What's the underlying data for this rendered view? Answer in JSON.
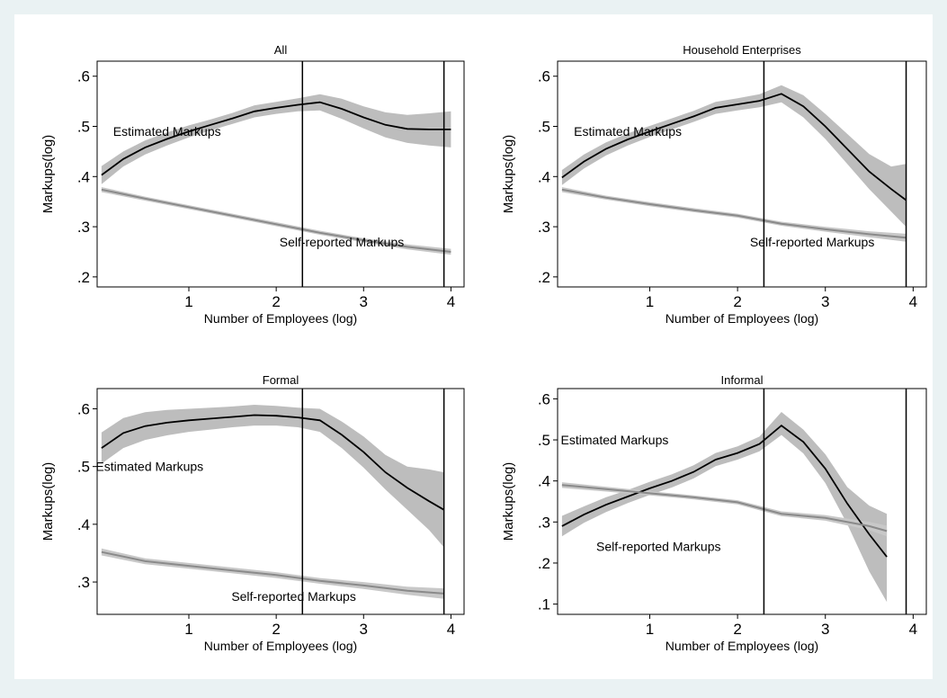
{
  "colors": {
    "page_background": "#eaf2f3",
    "plot_background": "#ffffff",
    "estimated_line": "#000000",
    "estimated_band": "#bdbdbd",
    "self_reported_line": "#8a8a8a",
    "self_reported_band": "#c8c8c8",
    "reference_lines": "#000000"
  },
  "chart_data": [
    {
      "type": "line",
      "title": "All",
      "xlabel": "Number of Employees (log)",
      "ylabel": "Markups(log)",
      "xlim": [
        -0.05,
        4.15
      ],
      "ylim": [
        0.18,
        0.63
      ],
      "xticks": [
        1,
        2,
        3,
        4
      ],
      "xtick_labels": [
        "1",
        "2",
        "3",
        "4"
      ],
      "yticks": [
        0.2,
        0.3,
        0.4,
        0.5,
        0.6
      ],
      "ytick_labels": [
        ".2",
        ".3",
        ".4",
        ".5",
        ".6"
      ],
      "vlines": [
        2.3,
        3.92
      ],
      "grid": false,
      "legend": "none",
      "annotations": [
        {
          "text": "Estimated Markups",
          "x": 0.75,
          "y": 0.49
        },
        {
          "text": "Self-reported Markups",
          "x": 2.75,
          "y": 0.27
        }
      ],
      "series": [
        {
          "name": "Estimated Markups",
          "x": [
            0.0,
            0.25,
            0.5,
            0.75,
            1.0,
            1.25,
            1.5,
            1.75,
            2.0,
            2.25,
            2.5,
            2.75,
            3.0,
            3.25,
            3.5,
            3.75,
            4.0
          ],
          "y": [
            0.403,
            0.435,
            0.458,
            0.475,
            0.49,
            0.503,
            0.516,
            0.53,
            0.537,
            0.543,
            0.548,
            0.535,
            0.518,
            0.503,
            0.495,
            0.494,
            0.494
          ],
          "lower": [
            0.385,
            0.42,
            0.444,
            0.462,
            0.478,
            0.492,
            0.505,
            0.518,
            0.525,
            0.53,
            0.532,
            0.515,
            0.496,
            0.478,
            0.467,
            0.462,
            0.458
          ],
          "upper": [
            0.421,
            0.45,
            0.472,
            0.488,
            0.502,
            0.514,
            0.527,
            0.542,
            0.549,
            0.556,
            0.564,
            0.555,
            0.54,
            0.528,
            0.523,
            0.526,
            0.53
          ]
        },
        {
          "name": "Self-reported Markups",
          "x": [
            0.0,
            0.5,
            1.0,
            1.5,
            2.0,
            2.5,
            3.0,
            3.5,
            4.0
          ],
          "y": [
            0.374,
            0.356,
            0.339,
            0.322,
            0.305,
            0.288,
            0.273,
            0.26,
            0.25
          ],
          "lower": [
            0.369,
            0.352,
            0.335,
            0.318,
            0.301,
            0.284,
            0.269,
            0.255,
            0.244
          ],
          "upper": [
            0.379,
            0.36,
            0.343,
            0.326,
            0.309,
            0.292,
            0.277,
            0.265,
            0.256
          ]
        }
      ]
    },
    {
      "type": "line",
      "title": "Household Enterprises",
      "xlabel": "Number of Employees (log)",
      "ylabel": "Markups(log)",
      "xlim": [
        -0.05,
        4.15
      ],
      "ylim": [
        0.18,
        0.63
      ],
      "xticks": [
        1,
        2,
        3,
        4
      ],
      "xtick_labels": [
        "1",
        "2",
        "3",
        "4"
      ],
      "yticks": [
        0.2,
        0.3,
        0.4,
        0.5,
        0.6
      ],
      "ytick_labels": [
        ".2",
        ".3",
        ".4",
        ".5",
        ".6"
      ],
      "vlines": [
        2.3,
        3.92
      ],
      "grid": false,
      "legend": "none",
      "annotations": [
        {
          "text": "Estimated Markups",
          "x": 0.75,
          "y": 0.49
        },
        {
          "text": "Self-reported Markups",
          "x": 2.85,
          "y": 0.27
        }
      ],
      "series": [
        {
          "name": "Estimated Markups",
          "x": [
            0.0,
            0.25,
            0.5,
            0.75,
            1.0,
            1.25,
            1.5,
            1.75,
            2.0,
            2.25,
            2.5,
            2.75,
            3.0,
            3.25,
            3.5,
            3.75,
            3.92
          ],
          "y": [
            0.398,
            0.43,
            0.455,
            0.474,
            0.49,
            0.505,
            0.52,
            0.537,
            0.544,
            0.551,
            0.565,
            0.54,
            0.5,
            0.455,
            0.41,
            0.375,
            0.353
          ],
          "lower": [
            0.383,
            0.416,
            0.442,
            0.462,
            0.479,
            0.494,
            0.509,
            0.525,
            0.532,
            0.538,
            0.548,
            0.518,
            0.475,
            0.425,
            0.375,
            0.33,
            0.3
          ],
          "upper": [
            0.413,
            0.444,
            0.468,
            0.486,
            0.501,
            0.516,
            0.531,
            0.549,
            0.556,
            0.564,
            0.582,
            0.562,
            0.525,
            0.485,
            0.445,
            0.42,
            0.425
          ]
        },
        {
          "name": "Self-reported Markups",
          "x": [
            0.0,
            0.5,
            1.0,
            1.5,
            2.0,
            2.5,
            3.0,
            3.5,
            3.92
          ],
          "y": [
            0.374,
            0.358,
            0.345,
            0.333,
            0.322,
            0.306,
            0.295,
            0.285,
            0.278
          ],
          "lower": [
            0.369,
            0.354,
            0.341,
            0.329,
            0.318,
            0.302,
            0.29,
            0.279,
            0.27
          ],
          "upper": [
            0.379,
            0.362,
            0.349,
            0.337,
            0.326,
            0.31,
            0.3,
            0.291,
            0.286
          ]
        }
      ]
    },
    {
      "type": "line",
      "title": "Formal",
      "xlabel": "Number of Employees (log)",
      "ylabel": "Markups(log)",
      "xlim": [
        -0.05,
        4.15
      ],
      "ylim": [
        0.244,
        0.635
      ],
      "xticks": [
        1,
        2,
        3,
        4
      ],
      "xtick_labels": [
        "1",
        "2",
        "3",
        "4"
      ],
      "yticks": [
        0.3,
        0.4,
        0.5,
        0.6
      ],
      "ytick_labels": [
        ".3",
        ".4",
        ".5",
        ".6"
      ],
      "vlines": [
        2.3,
        3.92
      ],
      "grid": false,
      "legend": "none",
      "annotations": [
        {
          "text": "Estimated Markups",
          "x": 0.55,
          "y": 0.5
        },
        {
          "text": "Self-reported Markups",
          "x": 2.2,
          "y": 0.275
        }
      ],
      "series": [
        {
          "name": "Estimated Markups",
          "x": [
            0.0,
            0.25,
            0.5,
            0.75,
            1.0,
            1.25,
            1.5,
            1.75,
            2.0,
            2.25,
            2.5,
            2.75,
            3.0,
            3.25,
            3.5,
            3.75,
            3.92
          ],
          "y": [
            0.532,
            0.558,
            0.57,
            0.576,
            0.58,
            0.583,
            0.586,
            0.589,
            0.588,
            0.585,
            0.58,
            0.555,
            0.525,
            0.49,
            0.463,
            0.44,
            0.425
          ],
          "lower": [
            0.505,
            0.532,
            0.546,
            0.554,
            0.56,
            0.564,
            0.568,
            0.571,
            0.571,
            0.568,
            0.56,
            0.532,
            0.498,
            0.46,
            0.425,
            0.39,
            0.36
          ],
          "upper": [
            0.559,
            0.584,
            0.594,
            0.598,
            0.6,
            0.602,
            0.604,
            0.607,
            0.605,
            0.602,
            0.6,
            0.578,
            0.552,
            0.52,
            0.5,
            0.495,
            0.49
          ]
        },
        {
          "name": "Self-reported Markups",
          "x": [
            0.0,
            0.5,
            1.0,
            1.5,
            2.0,
            2.5,
            3.0,
            3.5,
            3.92
          ],
          "y": [
            0.352,
            0.336,
            0.328,
            0.32,
            0.312,
            0.302,
            0.294,
            0.285,
            0.28
          ],
          "lower": [
            0.346,
            0.331,
            0.323,
            0.315,
            0.307,
            0.297,
            0.288,
            0.278,
            0.271
          ],
          "upper": [
            0.358,
            0.341,
            0.333,
            0.325,
            0.317,
            0.307,
            0.3,
            0.292,
            0.289
          ]
        }
      ]
    },
    {
      "type": "line",
      "title": "Informal",
      "xlabel": "Number of Employees (log)",
      "ylabel": "Markups(log)",
      "xlim": [
        -0.05,
        4.15
      ],
      "ylim": [
        0.075,
        0.625
      ],
      "xticks": [
        1,
        2,
        3,
        4
      ],
      "xtick_labels": [
        "1",
        "2",
        "3",
        "4"
      ],
      "yticks": [
        0.1,
        0.2,
        0.3,
        0.4,
        0.5,
        0.6
      ],
      "ytick_labels": [
        ".1",
        ".2",
        ".3",
        ".4",
        ".5",
        ".6"
      ],
      "vlines": [
        2.3,
        3.92
      ],
      "grid": false,
      "legend": "none",
      "annotations": [
        {
          "text": "Estimated Markups",
          "x": 0.6,
          "y": 0.5
        },
        {
          "text": "Self-reported Markups",
          "x": 1.1,
          "y": 0.24
        }
      ],
      "series": [
        {
          "name": "Estimated Markups",
          "x": [
            0.0,
            0.25,
            0.5,
            0.75,
            1.0,
            1.25,
            1.5,
            1.75,
            2.0,
            2.25,
            2.5,
            2.75,
            3.0,
            3.25,
            3.5,
            3.7
          ],
          "y": [
            0.29,
            0.318,
            0.342,
            0.362,
            0.382,
            0.4,
            0.422,
            0.452,
            0.468,
            0.49,
            0.535,
            0.495,
            0.43,
            0.345,
            0.27,
            0.215
          ],
          "lower": [
            0.265,
            0.298,
            0.324,
            0.346,
            0.366,
            0.384,
            0.406,
            0.436,
            0.452,
            0.472,
            0.512,
            0.467,
            0.395,
            0.295,
            0.18,
            0.105
          ],
          "upper": [
            0.315,
            0.338,
            0.36,
            0.378,
            0.398,
            0.416,
            0.438,
            0.468,
            0.484,
            0.508,
            0.568,
            0.525,
            0.465,
            0.385,
            0.34,
            0.32
          ]
        },
        {
          "name": "Self-reported Markups",
          "x": [
            0.0,
            0.5,
            1.0,
            1.5,
            2.0,
            2.5,
            3.0,
            3.5,
            3.7
          ],
          "y": [
            0.39,
            0.38,
            0.37,
            0.36,
            0.348,
            0.32,
            0.31,
            0.29,
            0.278
          ],
          "lower": [
            0.383,
            0.374,
            0.365,
            0.355,
            0.343,
            0.314,
            0.303,
            0.28,
            0.265
          ],
          "upper": [
            0.397,
            0.386,
            0.375,
            0.365,
            0.353,
            0.326,
            0.317,
            0.3,
            0.291
          ]
        }
      ]
    }
  ]
}
